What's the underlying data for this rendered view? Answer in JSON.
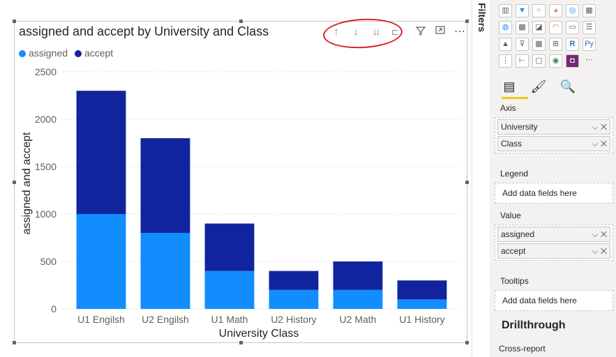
{
  "chart": {
    "title": "assigned and accept by University and Class",
    "header_icons": [
      "arrow-up-icon",
      "arrow-down-icon",
      "double-arrow-down-icon",
      "expand-hierarchy-icon",
      "filter-icon",
      "focus-mode-icon",
      "more-options-icon"
    ],
    "colors": {
      "assigned": "#118dff",
      "accept": "#12239e",
      "grid": "#c8c6c4",
      "annotation": "#e02020"
    }
  },
  "chart_data": {
    "type": "bar",
    "stacked": true,
    "title": "assigned and accept by University and Class",
    "xlabel": "University Class",
    "ylabel": "assigned and accept",
    "categories": [
      "U1 Engilsh",
      "U2 Engilsh",
      "U1 Math",
      "U2 History",
      "U2 Math",
      "U1 History"
    ],
    "series": [
      {
        "name": "assigned",
        "values": [
          1000,
          800,
          400,
          200,
          200,
          100
        ]
      },
      {
        "name": "accept",
        "values": [
          1300,
          1000,
          500,
          200,
          300,
          200
        ]
      }
    ],
    "yticks": [
      "0",
      "500",
      "1000",
      "1500",
      "2000",
      "2500"
    ],
    "ylim": [
      0,
      2500
    ],
    "legend_position": "top-left",
    "grid": true
  },
  "panel": {
    "filters_label": "Filters",
    "axis_label": "Axis",
    "axis_fields": [
      "University",
      "Class"
    ],
    "legend_label": "Legend",
    "legend_placeholder": "Add data fields here",
    "value_label": "Value",
    "value_fields": [
      "assigned",
      "accept"
    ],
    "tooltips_label": "Tooltips",
    "tooltips_placeholder": "Add data fields here",
    "drillthrough_label": "Drillthrough",
    "cross_report_label": "Cross-report"
  }
}
